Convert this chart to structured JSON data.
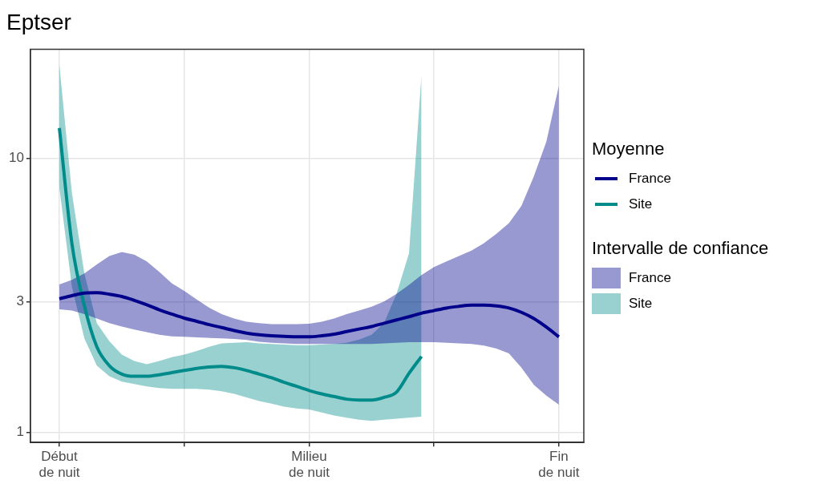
{
  "chart_data": {
    "type": "line",
    "title": "Eptser",
    "legend_title": "Moyenne",
    "annotations": [
      "Intervalle de confiance"
    ],
    "legend": "right",
    "grid": true,
    "log": "y",
    "categories": [
      "Début de nuit",
      null,
      null,
      null,
      null,
      null,
      null,
      null,
      null,
      null,
      null,
      null,
      null,
      null,
      null,
      null,
      null,
      null,
      null,
      null,
      "Milieu de nuit",
      null,
      null,
      null,
      null,
      null,
      null,
      null,
      null,
      null,
      null,
      null,
      null,
      null,
      null,
      null,
      null,
      null,
      null,
      null,
      "Fin de nuit"
    ],
    "ylim": [
      0.917,
      25
    ],
    "yticks": [
      1,
      3,
      10
    ],
    "series": [
      {
        "name": "France",
        "color": "#00008b",
        "values": [
          3.07,
          3.15,
          3.22,
          3.23,
          3.19,
          3.13,
          3.03,
          2.92,
          2.8,
          2.7,
          2.61,
          2.54,
          2.47,
          2.41,
          2.35,
          2.3,
          2.27,
          2.25,
          2.24,
          2.23,
          2.23,
          2.25,
          2.28,
          2.33,
          2.38,
          2.43,
          2.5,
          2.57,
          2.64,
          2.72,
          2.78,
          2.84,
          2.88,
          2.91,
          2.91,
          2.89,
          2.84,
          2.74,
          2.6,
          2.42,
          2.23
        ],
        "lower": [
          2.81,
          2.78,
          2.7,
          2.6,
          2.5,
          2.43,
          2.37,
          2.32,
          2.27,
          2.24,
          2.23,
          2.22,
          2.21,
          2.2,
          2.19,
          2.17,
          2.14,
          2.12,
          2.11,
          2.1,
          2.1,
          2.1,
          2.1,
          2.1,
          2.1,
          2.1,
          2.11,
          2.12,
          2.13,
          2.13,
          2.13,
          2.12,
          2.11,
          2.1,
          2.07,
          2.02,
          1.94,
          1.72,
          1.49,
          1.36,
          1.26
        ],
        "upper": [
          3.46,
          3.6,
          3.8,
          4.1,
          4.4,
          4.55,
          4.45,
          4.2,
          3.85,
          3.5,
          3.28,
          3.05,
          2.85,
          2.7,
          2.6,
          2.53,
          2.5,
          2.48,
          2.48,
          2.48,
          2.49,
          2.53,
          2.6,
          2.7,
          2.78,
          2.87,
          3.0,
          3.2,
          3.45,
          3.75,
          4.01,
          4.2,
          4.4,
          4.6,
          4.9,
          5.3,
          5.8,
          6.7,
          8.6,
          11.5,
          18.4
        ]
      },
      {
        "name": "Site",
        "color": "#008b8b",
        "values": [
          12.9,
          4.9,
          2.9,
          2.05,
          1.75,
          1.63,
          1.6,
          1.6,
          1.62,
          1.65,
          1.68,
          1.71,
          1.73,
          1.74,
          1.72,
          1.68,
          1.63,
          1.58,
          1.52,
          1.47,
          1.42,
          1.38,
          1.35,
          1.32,
          1.31,
          1.31,
          1.34,
          1.4,
          1.64,
          1.89,
          null,
          null,
          null,
          null,
          null,
          null,
          null,
          null,
          null,
          null,
          null
        ],
        "lower": [
          7.8,
          3.4,
          2.2,
          1.75,
          1.6,
          1.53,
          1.5,
          1.47,
          1.45,
          1.44,
          1.44,
          1.44,
          1.43,
          1.41,
          1.38,
          1.34,
          1.3,
          1.27,
          1.24,
          1.22,
          1.21,
          1.18,
          1.15,
          1.13,
          1.11,
          1.1,
          1.11,
          1.12,
          1.13,
          1.14,
          null,
          null,
          null,
          null,
          null,
          null,
          null,
          null,
          null,
          null,
          null
        ],
        "upper": [
          21.9,
          7.5,
          3.8,
          2.5,
          2.15,
          1.92,
          1.82,
          1.77,
          1.82,
          1.88,
          1.92,
          1.98,
          2.05,
          2.11,
          2.12,
          2.13,
          2.11,
          2.1,
          2.09,
          2.08,
          2.08,
          2.09,
          2.1,
          2.12,
          2.18,
          2.27,
          2.5,
          3.2,
          4.5,
          20.2,
          null,
          null,
          null,
          null,
          null,
          null,
          null,
          null,
          null,
          null,
          null
        ]
      }
    ]
  }
}
